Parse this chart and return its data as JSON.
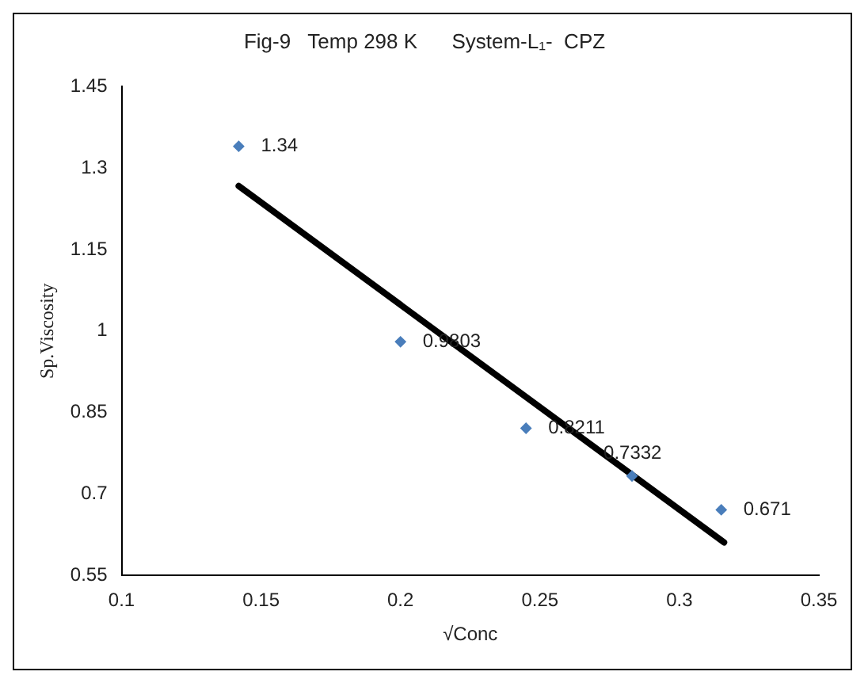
{
  "chart_data": {
    "type": "scatter",
    "title": "Fig-9   Temp 298 K      System-L₁-  CPZ",
    "xlabel": "√Conc",
    "ylabel": "Sp.Viscosity",
    "series": [
      {
        "color": "#4a7ebb",
        "x": [
          0.142,
          0.2,
          0.245,
          0.283,
          0.315
        ],
        "values": [
          1.34,
          0.9803,
          0.8211,
          0.7332,
          0.671
        ],
        "value_labels": [
          "1.34",
          "0.9803",
          "0.8211",
          "0.7332",
          "0.671"
        ],
        "marker": "diamond"
      },
      {
        "type": "line",
        "color": "#000000",
        "x": [
          0.142,
          0.316
        ],
        "values": [
          1.267,
          0.611
        ],
        "marker": "none"
      }
    ],
    "xlim": [
      0.1,
      0.35
    ],
    "xticks": [
      0.1,
      0.15,
      0.2,
      0.25,
      0.3,
      0.35
    ],
    "ylim": [
      0.55,
      1.45
    ],
    "yticks": [
      0.55,
      0.7,
      0.85,
      1,
      1.15,
      1.3,
      1.45
    ],
    "grid": false,
    "legend": false
  }
}
